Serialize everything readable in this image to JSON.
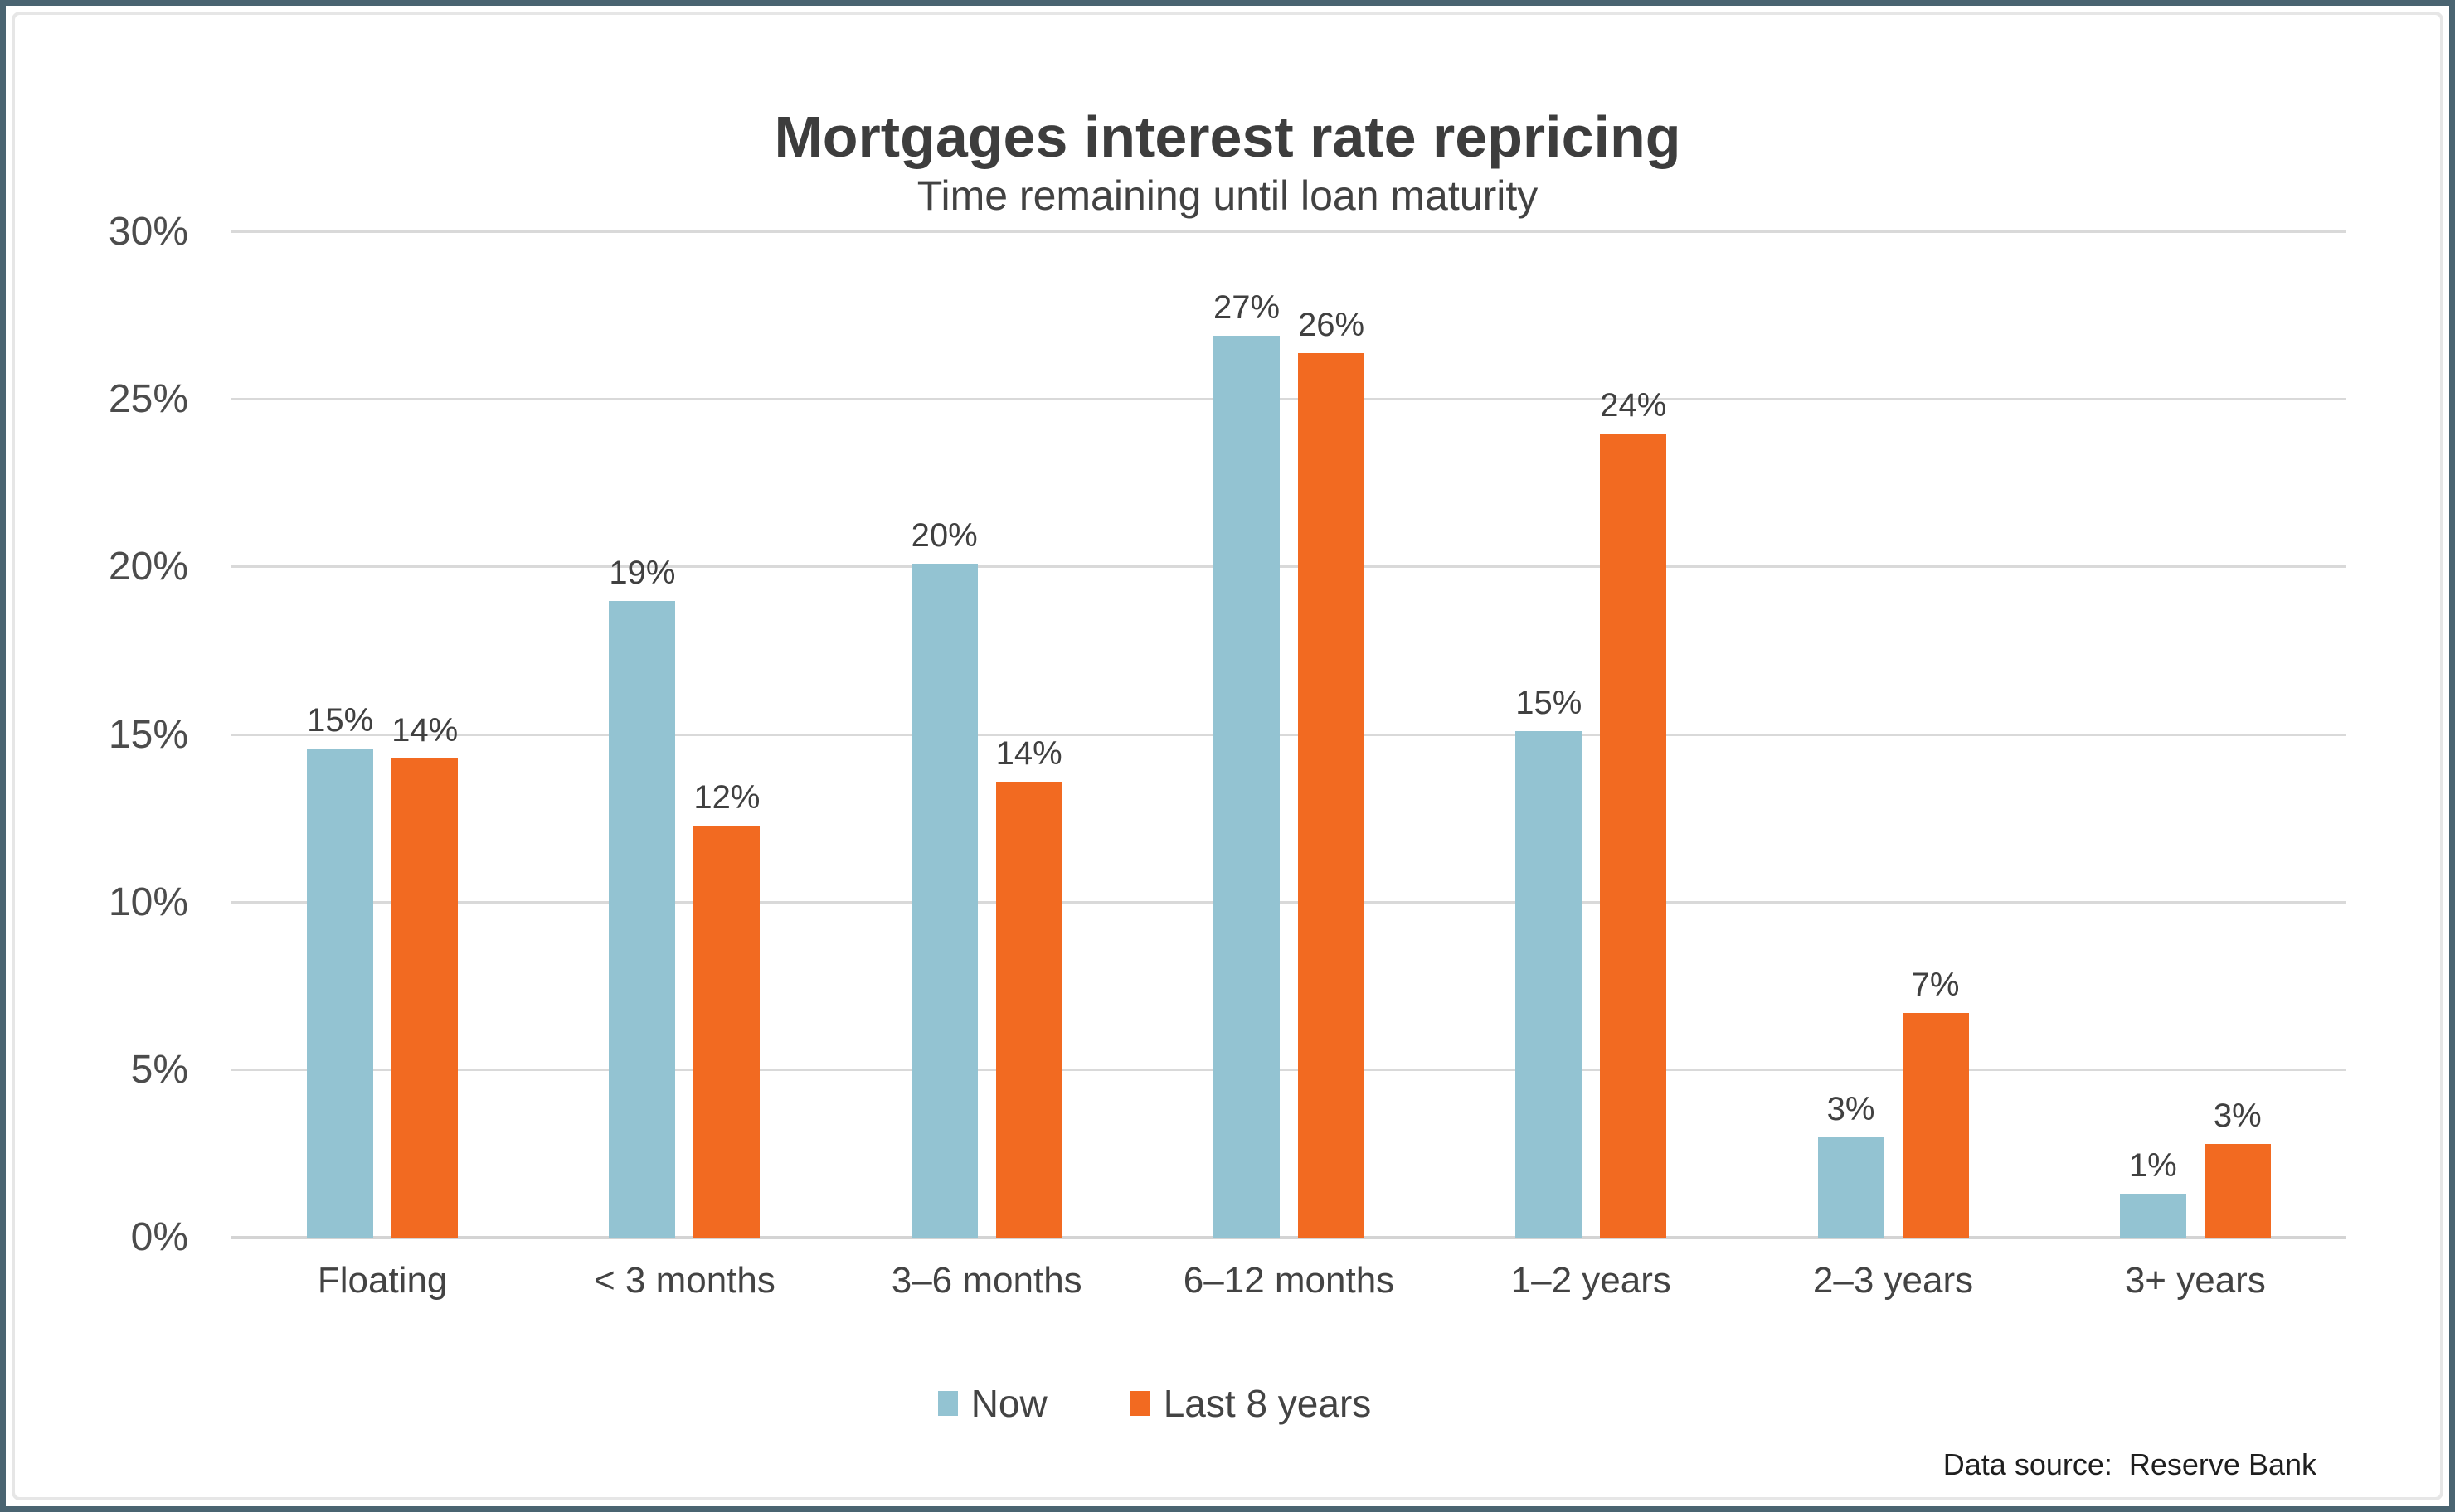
{
  "page": {
    "background": "#ffffff",
    "frame_color": "#4a6471",
    "inner_line_color": "#e6e6e6",
    "grid_color": "#d9d9d9",
    "text_color": "#404040"
  },
  "chart_data": {
    "type": "bar",
    "title": "Mortgages interest rate repricing",
    "subtitle": "Time remaining until loan maturity",
    "categories": [
      "Floating",
      "< 3 months",
      "3–6 months",
      "6–12 months",
      "1–2 years",
      "2–3 years",
      "3+ years"
    ],
    "series": [
      {
        "name": "Now",
        "color": "#93c3d2",
        "values": [
          15,
          19,
          20,
          27,
          15,
          3,
          1
        ],
        "values_precise_pct": [
          14.6,
          19.0,
          20.1,
          26.9,
          15.1,
          3.0,
          1.3
        ]
      },
      {
        "name": "Last 8 years",
        "color": "#f26a21",
        "values": [
          14,
          12,
          14,
          26,
          24,
          7,
          3
        ],
        "values_precise_pct": [
          14.3,
          12.3,
          13.6,
          26.4,
          24.0,
          6.7,
          2.8
        ]
      }
    ],
    "y_axis": {
      "min": 0,
      "max": 30,
      "step": 5,
      "tick_values": [
        0,
        5,
        10,
        15,
        20,
        25,
        30
      ],
      "tick_labels": [
        "0%",
        "5%",
        "10%",
        "15%",
        "20%",
        "25%",
        "30%"
      ]
    },
    "grid": true,
    "data_labels": true,
    "legend_position": "bottom"
  },
  "footer": {
    "data_source": "Data source:  Reserve Bank"
  }
}
